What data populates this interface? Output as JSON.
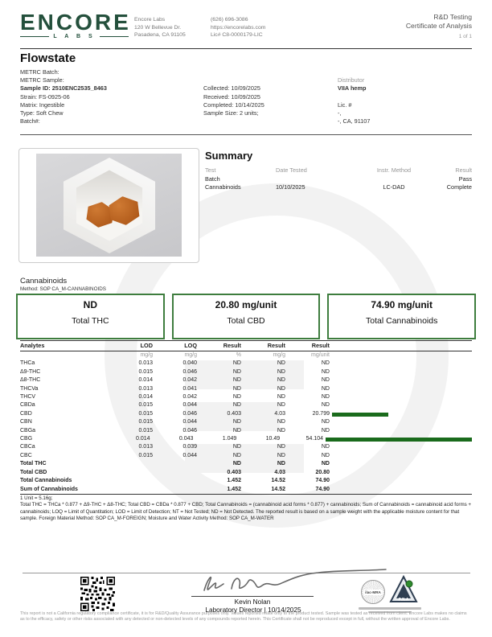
{
  "colors": {
    "brand_green": "#24503c",
    "box_border_green": "#3e7d3e",
    "bar_green": "#1a6b1c",
    "gummy_orange": "#b05a1a"
  },
  "header": {
    "logo_text": "ENCORE",
    "logo_sub": "L A B S",
    "lab_name": "Encore Labs",
    "address1": "120 W Bellevue Dr.",
    "address2": "Pasadena, CA 91105",
    "phone": "(626) 696-3086",
    "website": "https://encorelabs.com",
    "license": "Lic# C8-0000179-LIC",
    "report_type": "R&D Testing",
    "doc_title": "Certificate of Analysis",
    "page_number": "1 of 1"
  },
  "sample": {
    "product_name": "Flowstate",
    "left_lines": [
      {
        "text": "METRC Batch:"
      },
      {
        "text": "METRC Sample:"
      },
      {
        "text": "Sample ID: 2510ENC2535_8463",
        "bold": true
      },
      {
        "text": "Strain: FS-0925-06"
      },
      {
        "text": "Matrix: Ingestible"
      },
      {
        "text": "Type: Soft Chew"
      },
      {
        "text": "Batch#:"
      }
    ],
    "mid_lines": [
      {
        "text": "Collected: 10/09/2025"
      },
      {
        "text": "Received: 10/09/2025"
      },
      {
        "text": "Completed: 10/14/2025"
      },
      {
        "text": "Sample Size: 2 units;"
      }
    ],
    "right_lines": [
      {
        "text": "Distributor",
        "gray": true
      },
      {
        "text": "VIIA hemp",
        "bold": true
      },
      {
        "text": ""
      },
      {
        "text": "Lic. #"
      },
      {
        "text": "-,"
      },
      {
        "text": "-, CA, 91107"
      }
    ]
  },
  "summary": {
    "title": "Summary",
    "columns": [
      "Test",
      "Date Tested",
      "Instr. Method",
      "Result"
    ],
    "rows": [
      {
        "test": "Batch",
        "date": "",
        "method": "",
        "result": "Pass"
      },
      {
        "test": "Cannabinoids",
        "date": "10/10/2025",
        "method": "LC-DAD",
        "result": "Complete"
      }
    ]
  },
  "cannabinoids": {
    "section_title": "Cannabinoids",
    "method": "Method: SOP CA_M-CANNABINOIDS",
    "highlight_boxes": [
      {
        "value": "ND",
        "label": "Total THC"
      },
      {
        "value": "20.80 mg/unit",
        "label": "Total CBD"
      },
      {
        "value": "74.90 mg/unit",
        "label": "Total Cannabinoids"
      }
    ],
    "table": {
      "headers": [
        "Analytes",
        "LOD",
        "LOQ",
        "Result",
        "Result",
        "Result"
      ],
      "units": [
        "",
        "mg/g",
        "mg/g",
        "%",
        "mg/g",
        "mg/unit"
      ],
      "bar_max": 54.104,
      "rows": [
        {
          "analyte": "THCa",
          "lod": "0.013",
          "loq": "0.040",
          "pct": "ND",
          "mgg": "ND",
          "mgunit": "ND",
          "bar": 0
        },
        {
          "analyte": "Δ9-THC",
          "lod": "0.015",
          "loq": "0.046",
          "pct": "ND",
          "mgg": "ND",
          "mgunit": "ND",
          "bar": 0
        },
        {
          "analyte": "Δ8-THC",
          "lod": "0.014",
          "loq": "0.042",
          "pct": "ND",
          "mgg": "ND",
          "mgunit": "ND",
          "bar": 0
        },
        {
          "analyte": "THCVa",
          "lod": "0.013",
          "loq": "0.041",
          "pct": "ND",
          "mgg": "ND",
          "mgunit": "ND",
          "bar": 0
        },
        {
          "analyte": "THCV",
          "lod": "0.014",
          "loq": "0.042",
          "pct": "ND",
          "mgg": "ND",
          "mgunit": "ND",
          "bar": 0
        },
        {
          "analyte": "CBDa",
          "lod": "0.015",
          "loq": "0.044",
          "pct": "ND",
          "mgg": "ND",
          "mgunit": "ND",
          "bar": 0
        },
        {
          "analyte": "CBD",
          "lod": "0.015",
          "loq": "0.046",
          "pct": "0.403",
          "mgg": "4.03",
          "mgunit": "20.799",
          "bar": 20.799
        },
        {
          "analyte": "CBN",
          "lod": "0.015",
          "loq": "0.044",
          "pct": "ND",
          "mgg": "ND",
          "mgunit": "ND",
          "bar": 0
        },
        {
          "analyte": "CBGa",
          "lod": "0.015",
          "loq": "0.046",
          "pct": "ND",
          "mgg": "ND",
          "mgunit": "ND",
          "bar": 0
        },
        {
          "analyte": "CBG",
          "lod": "0.014",
          "loq": "0.043",
          "pct": "1.049",
          "mgg": "10.49",
          "mgunit": "54.104",
          "bar": 54.104
        },
        {
          "analyte": "CBCa",
          "lod": "0.013",
          "loq": "0.039",
          "pct": "ND",
          "mgg": "ND",
          "mgunit": "ND",
          "bar": 0
        },
        {
          "analyte": "CBC",
          "lod": "0.015",
          "loq": "0.044",
          "pct": "ND",
          "mgg": "ND",
          "mgunit": "ND",
          "bar": 0
        },
        {
          "analyte": "Total THC",
          "lod": "",
          "loq": "",
          "pct": "ND",
          "mgg": "ND",
          "mgunit": "ND",
          "bar": 0,
          "total": true
        },
        {
          "analyte": "Total CBD",
          "lod": "",
          "loq": "",
          "pct": "0.403",
          "mgg": "4.03",
          "mgunit": "20.80",
          "bar": 0,
          "total": true
        },
        {
          "analyte": "Total Cannabinoids",
          "lod": "",
          "loq": "",
          "pct": "1.452",
          "mgg": "14.52",
          "mgunit": "74.90",
          "bar": 0,
          "total": true
        },
        {
          "analyte": "Sum of Cannabinoids",
          "lod": "",
          "loq": "",
          "pct": "1.452",
          "mgg": "14.52",
          "mgunit": "74.90",
          "bar": 0,
          "total": true,
          "last": true
        }
      ]
    },
    "footnotes": [
      "1 Unit = 5.16g;",
      "Total THC = THCa * 0.877 + Δ9-THC + Δ8-THC; Total CBD = CBDa * 0.877 + CBD; Total Cannabinoids = (cannabinoid acid forms * 0.877) + cannabinoids; Sum of Cannabinoids = cannabinoid acid forms + cannabinoids; LOQ = Limit of Quantitation; LOD = Limit of Detection; NT = Not Tested; ND = Not Detected. The reported result is based on a sample weight with the applicable moisture content for that sample. Foreign Material Method: SOP CA_M-FOREIGN; Moisture and Water Activity Method: SOP CA_M-WATER"
    ]
  },
  "signature": {
    "signer_name": "Kevin Nolan",
    "signer_role": "Laboratory Director | 10/14/2025"
  },
  "accreditation": {
    "ilac_label": "ilac-MRA",
    "pjla_label": "PJLA"
  },
  "disclaimer": "This report is not a California regulatory compliance certificate, it is for R&D/Quality Assurance purposes only. Values reported relate only to the product tested. Sample was tested as received from client. Encore Labs makes no claims as to the efficacy, safety or other risks associated with any detected or non-detected levels of any compounds reported herein. This Certificate shall not be reproduced except in full, without the written approval of Encore Labs."
}
